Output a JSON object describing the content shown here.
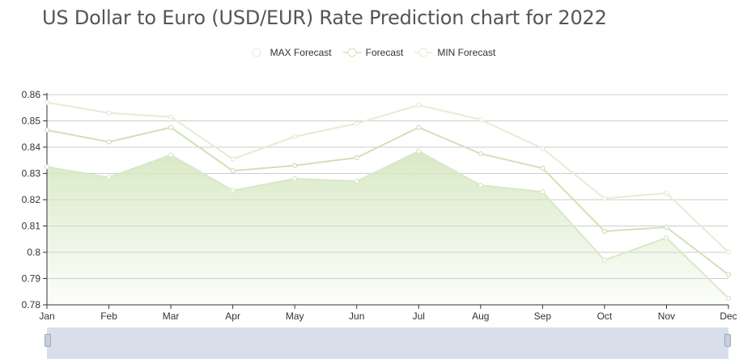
{
  "chart_data": {
    "type": "area",
    "title": "US Dollar to Euro (USD/EUR) Rate Prediction chart for 2022",
    "categories": [
      "Jan",
      "Feb",
      "Mar",
      "Apr",
      "May",
      "Jun",
      "Jul",
      "Aug",
      "Sep",
      "Oct",
      "Nov",
      "Dec"
    ],
    "ylim": [
      0.78,
      0.86
    ],
    "yticks": [
      0.78,
      0.79,
      0.8,
      0.81,
      0.82,
      0.83,
      0.84,
      0.85,
      0.86
    ],
    "ytick_labels": [
      "0.78",
      "0.79",
      "0.8",
      "0.81",
      "0.82",
      "0.83",
      "0.84",
      "0.85",
      "0.86"
    ],
    "grid": true,
    "legend_position": "top-center",
    "series": [
      {
        "name": "MAX Forecast",
        "color": "#e3edd6",
        "values": [
          0.857,
          0.853,
          0.8515,
          0.8355,
          0.844,
          0.849,
          0.856,
          0.8505,
          0.8395,
          0.8205,
          0.8225,
          0.8
        ]
      },
      {
        "name": "Forecast",
        "color": "#cfe2b8",
        "values": [
          0.8465,
          0.842,
          0.8475,
          0.831,
          0.833,
          0.836,
          0.8475,
          0.8375,
          0.832,
          0.808,
          0.8095,
          0.7915
        ]
      },
      {
        "name": "MIN Forecast",
        "color": "#d9e8c6",
        "fill": "#d6e8c3",
        "values": [
          0.8325,
          0.8285,
          0.837,
          0.8235,
          0.828,
          0.827,
          0.8385,
          0.8255,
          0.823,
          0.797,
          0.8055,
          0.7825
        ]
      }
    ]
  }
}
